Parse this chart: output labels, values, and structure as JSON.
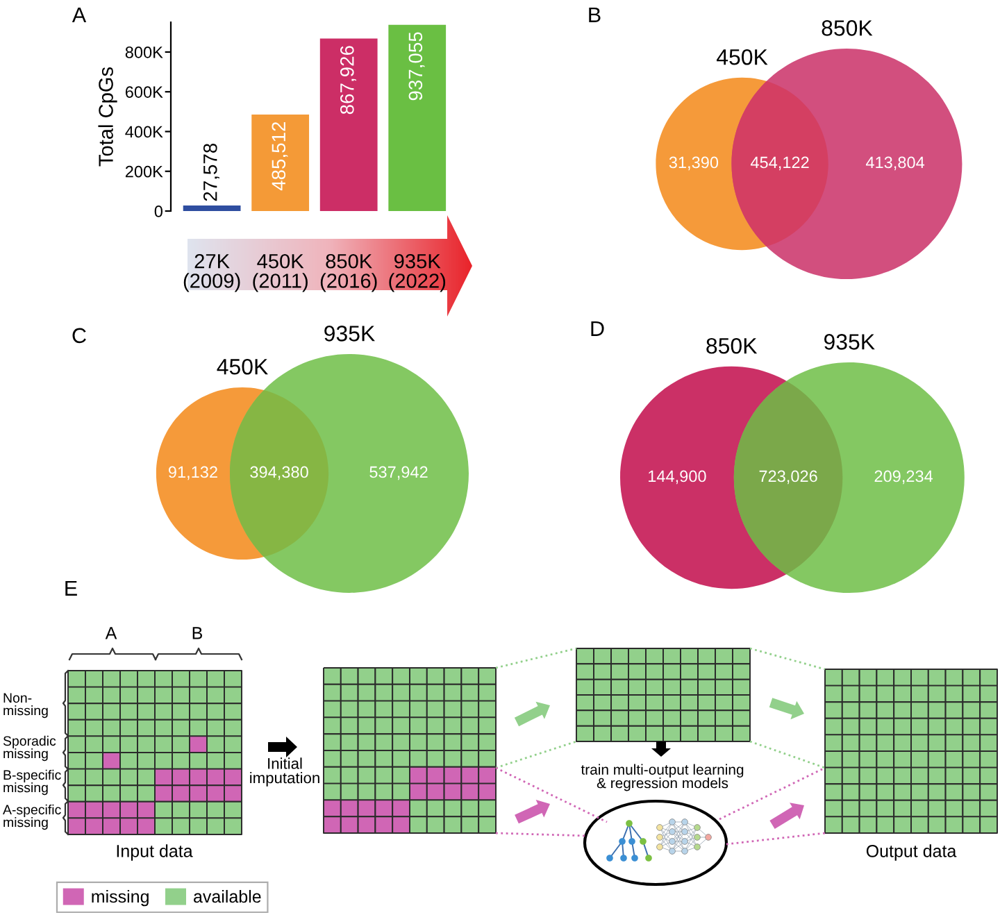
{
  "chart_data": [
    {
      "type": "bar",
      "title": "A",
      "categories": [
        "27K\n(2009)",
        "450K\n(2011)",
        "850K\n(2016)",
        "935K\n(2022)"
      ],
      "values": [
        27578,
        485512,
        867926,
        937055
      ],
      "colors": [
        "#2f4ea0",
        "#f49a37",
        "#cc2e66",
        "#6abf43"
      ],
      "value_labels": [
        "27,578",
        "485,512",
        "867,926",
        "937,055"
      ],
      "ylabel": "Total CpGs",
      "ylim": [
        0,
        950000
      ],
      "yticks": [
        0,
        {
          "value": 200000,
          "label": "200K"
        },
        {
          "value": 400000,
          "label": "400K"
        },
        {
          "value": 600000,
          "label": "600K"
        },
        {
          "value": 800000,
          "label": "800K"
        }
      ]
    },
    {
      "type": "other",
      "title": "B",
      "categories": [
        "450K",
        null,
        "850K"
      ],
      "colors": [
        "#f59a3a",
        "#d43f62",
        "#d24f7e"
      ],
      "values": [
        31390,
        454122,
        413804
      ],
      "value_labels": [
        "31,390",
        "454,122",
        "413,804"
      ]
    },
    {
      "type": "other",
      "title": "C",
      "categories": [
        "450K",
        null,
        "935K"
      ],
      "colors": [
        "#f59a3a",
        "#86b644",
        "#84c862"
      ],
      "values": [
        91132,
        394380,
        537942
      ],
      "value_labels": [
        "91,132",
        "394,380",
        "537,942"
      ]
    },
    {
      "type": "other",
      "title": "D",
      "categories": [
        "850K",
        null,
        "935K"
      ],
      "colors": [
        "#cb3066",
        "#7ba84a",
        "#84c862"
      ],
      "values": [
        144900,
        723026,
        209234
      ],
      "value_labels": [
        "144,900",
        "723,026",
        "209,234"
      ]
    },
    {
      "type": "other",
      "title": "E",
      "annotations": [
        "A",
        "B",
        "Non-\nmissing",
        "Sporadic\nmissing",
        "B-specific\nmissing",
        "A-specific\nmissing",
        "Input data",
        "Initial\nimputation",
        "train multi-output learning\n& regression models",
        "Output data"
      ],
      "series": [
        {
          "name": "missing",
          "color": "#d066b5"
        },
        {
          "name": "available",
          "color": "#92d08b"
        }
      ],
      "legend": "bottom left"
    }
  ]
}
